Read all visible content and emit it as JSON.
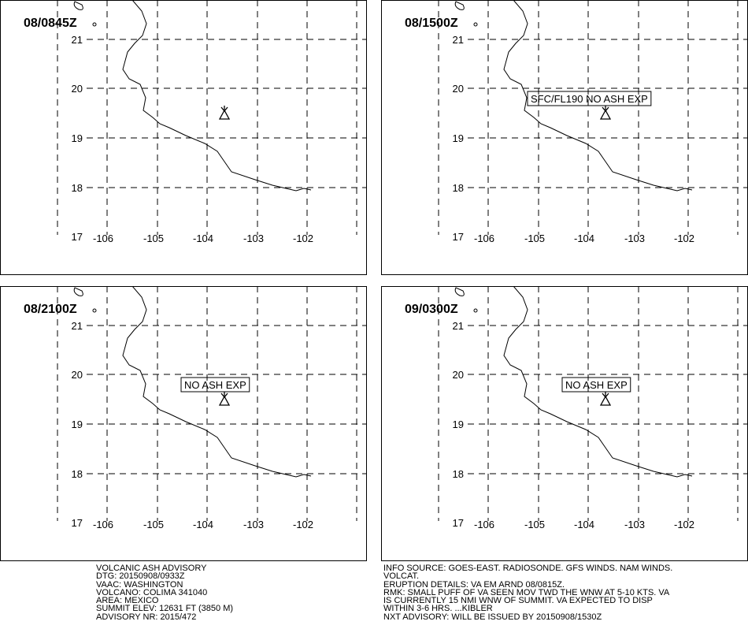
{
  "grid": {
    "lat_labels": [
      "21",
      "20",
      "19",
      "18",
      "17"
    ],
    "lon_labels": [
      "-106",
      "-105",
      "-104",
      "-103",
      "-102"
    ]
  },
  "panels": [
    {
      "time": "08/0845Z",
      "annotation": null
    },
    {
      "time": "08/1500Z",
      "annotation": "SFC/FL190 NO ASH EXP"
    },
    {
      "time": "08/2100Z",
      "annotation": "NO ASH EXP"
    },
    {
      "time": "09/0300Z",
      "annotation": "NO ASH EXP"
    }
  ],
  "footer": {
    "left": [
      "VOLCANIC ASH ADVISORY",
      "DTG: 20150908/0933Z",
      "VAAC: WASHINGTON",
      "VOLCANO: COLIMA 341040",
      "AREA: MEXICO",
      "SUMMIT ELEV: 12631 FT (3850 M)",
      "ADVISORY NR: 2015/472"
    ],
    "right": [
      "INFO SOURCE: GOES-EAST. RADIOSONDE. GFS WINDS. NAM WINDS.",
      "VOLCAT.",
      "ERUPTION DETAILS: VA EM ARND 08/0815Z.",
      "RMK: SMALL PUFF OF VA SEEN MOV TWD THE WNW AT 5-10 KTS. VA",
      "IS CURRENTLY 15 NMI WNW OF SUMMIT. VA EXPECTED TO DISP",
      "WITHIN 3-6 HRS. ...KIBLER",
      "NXT ADVISORY: WILL BE ISSUED BY 20150908/1530Z"
    ]
  }
}
